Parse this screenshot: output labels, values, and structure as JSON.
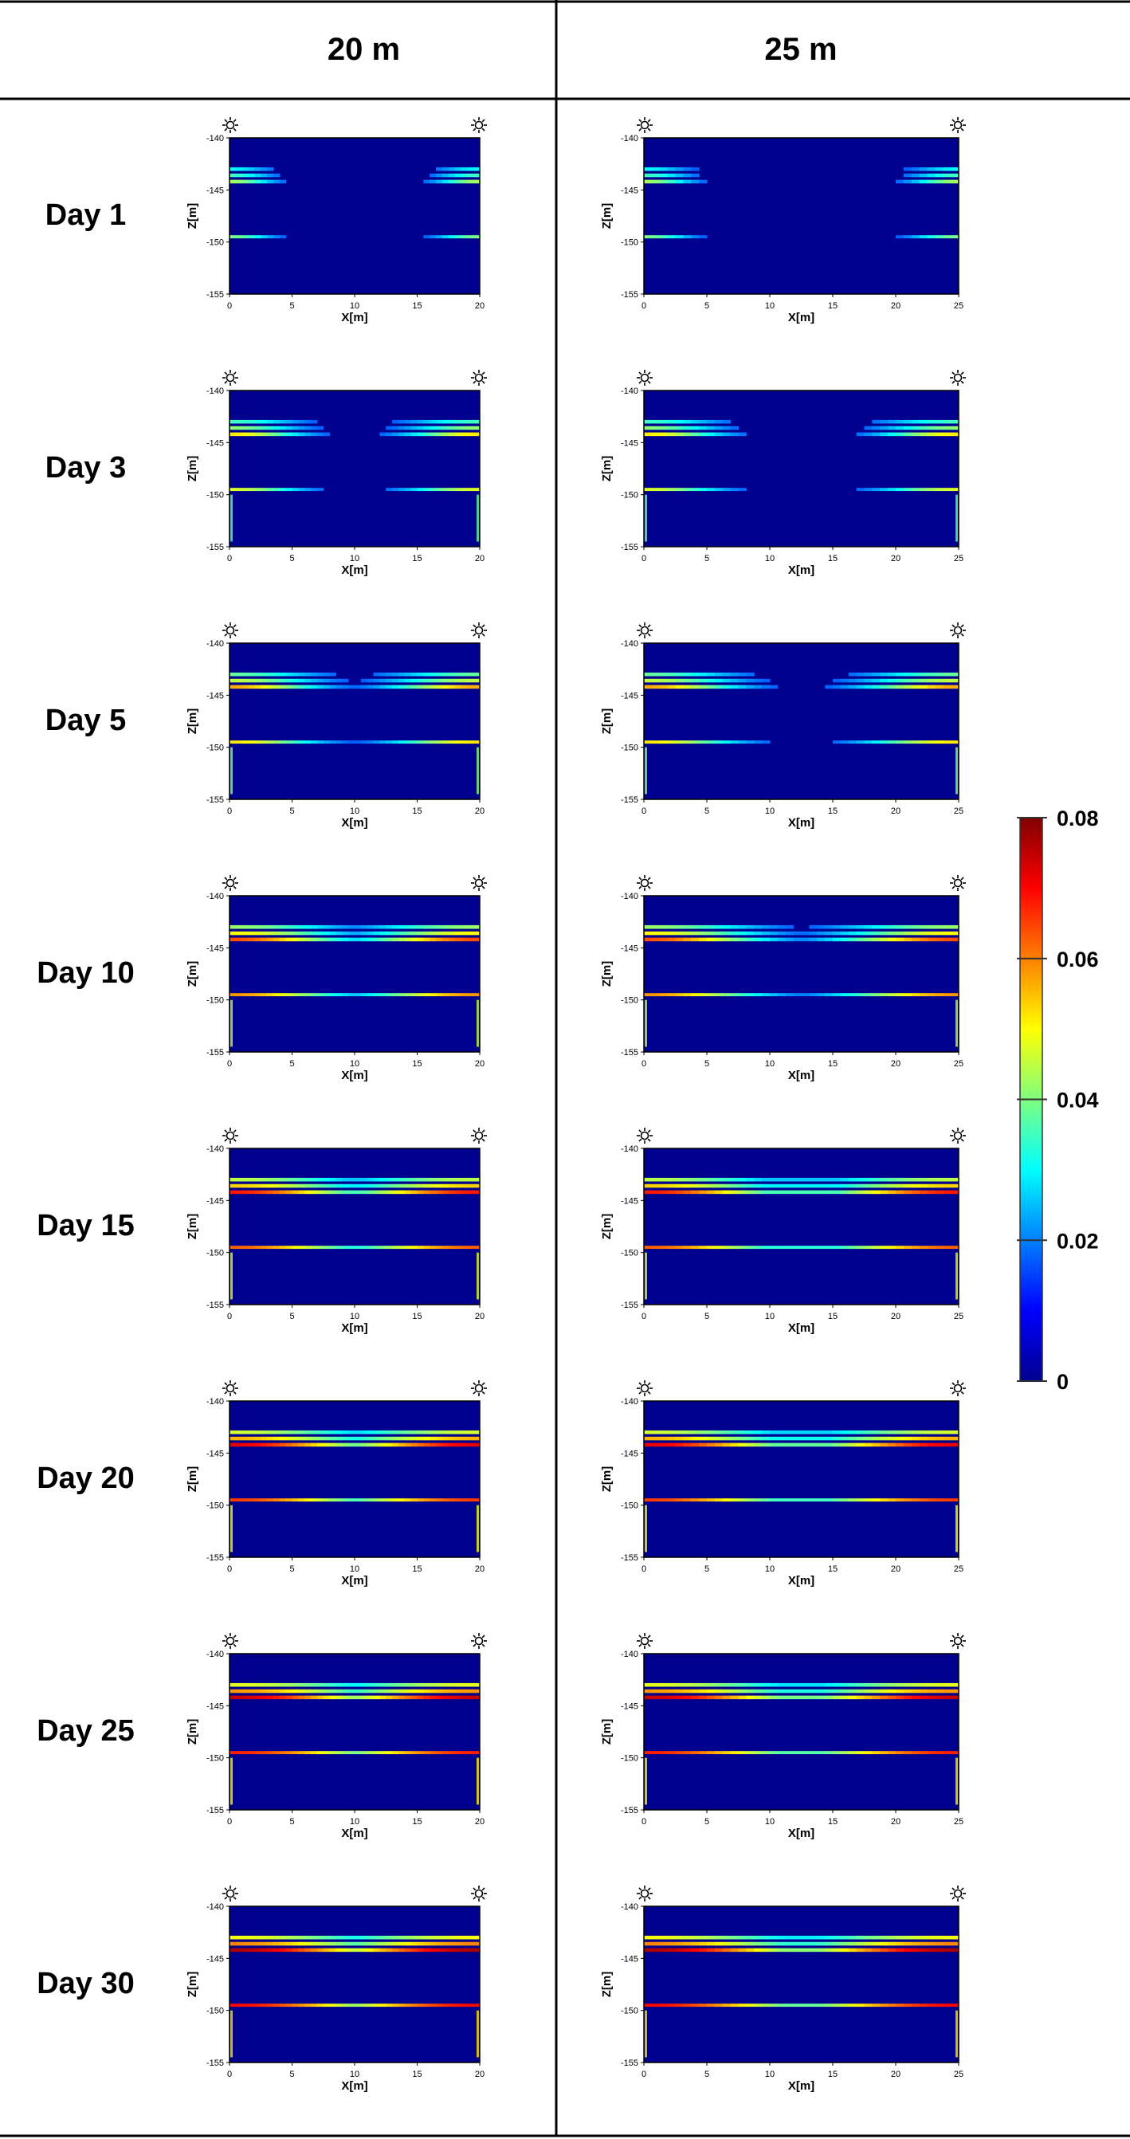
{
  "columns": [
    {
      "label": "20 m",
      "x_max": 20,
      "x_ticks": [
        "0",
        "5",
        "10",
        "15",
        "20"
      ]
    },
    {
      "label": "25 m",
      "x_max": 25,
      "x_ticks": [
        "0",
        "5",
        "10",
        "15",
        "20",
        "25"
      ]
    }
  ],
  "rows": [
    {
      "label": "Day 1",
      "day": 1
    },
    {
      "label": "Day 3",
      "day": 3
    },
    {
      "label": "Day 5",
      "day": 5
    },
    {
      "label": "Day 10",
      "day": 10
    },
    {
      "label": "Day 15",
      "day": 15
    },
    {
      "label": "Day 20",
      "day": 20
    },
    {
      "label": "Day 25",
      "day": 25
    },
    {
      "label": "Day 30",
      "day": 30
    }
  ],
  "axes": {
    "xlabel": "X[m]",
    "ylabel": "Z[m]",
    "y_ticks": [
      "-140",
      "-145",
      "-150",
      "-155"
    ],
    "ylim": [
      -155,
      -140
    ]
  },
  "colorbar": {
    "min": 0,
    "max": 0.08,
    "tick_labels": [
      "0.08",
      "0.06",
      "0.04",
      "0.02",
      "0"
    ],
    "colormap": "jet"
  },
  "chart_data": {
    "type": "heatmap",
    "layout": "grid 8 rows (days) x 2 columns (well spacing)",
    "x_unit": "m",
    "y_unit": "m",
    "ylim": [
      -155,
      -140
    ],
    "high_value_band_depths_m": [
      -143,
      -144,
      -149.5
    ],
    "heat_source_positions": "wells at both lateral edges (X = 0 and X = max)",
    "colormap_range": [
      0,
      0.08
    ]
  }
}
